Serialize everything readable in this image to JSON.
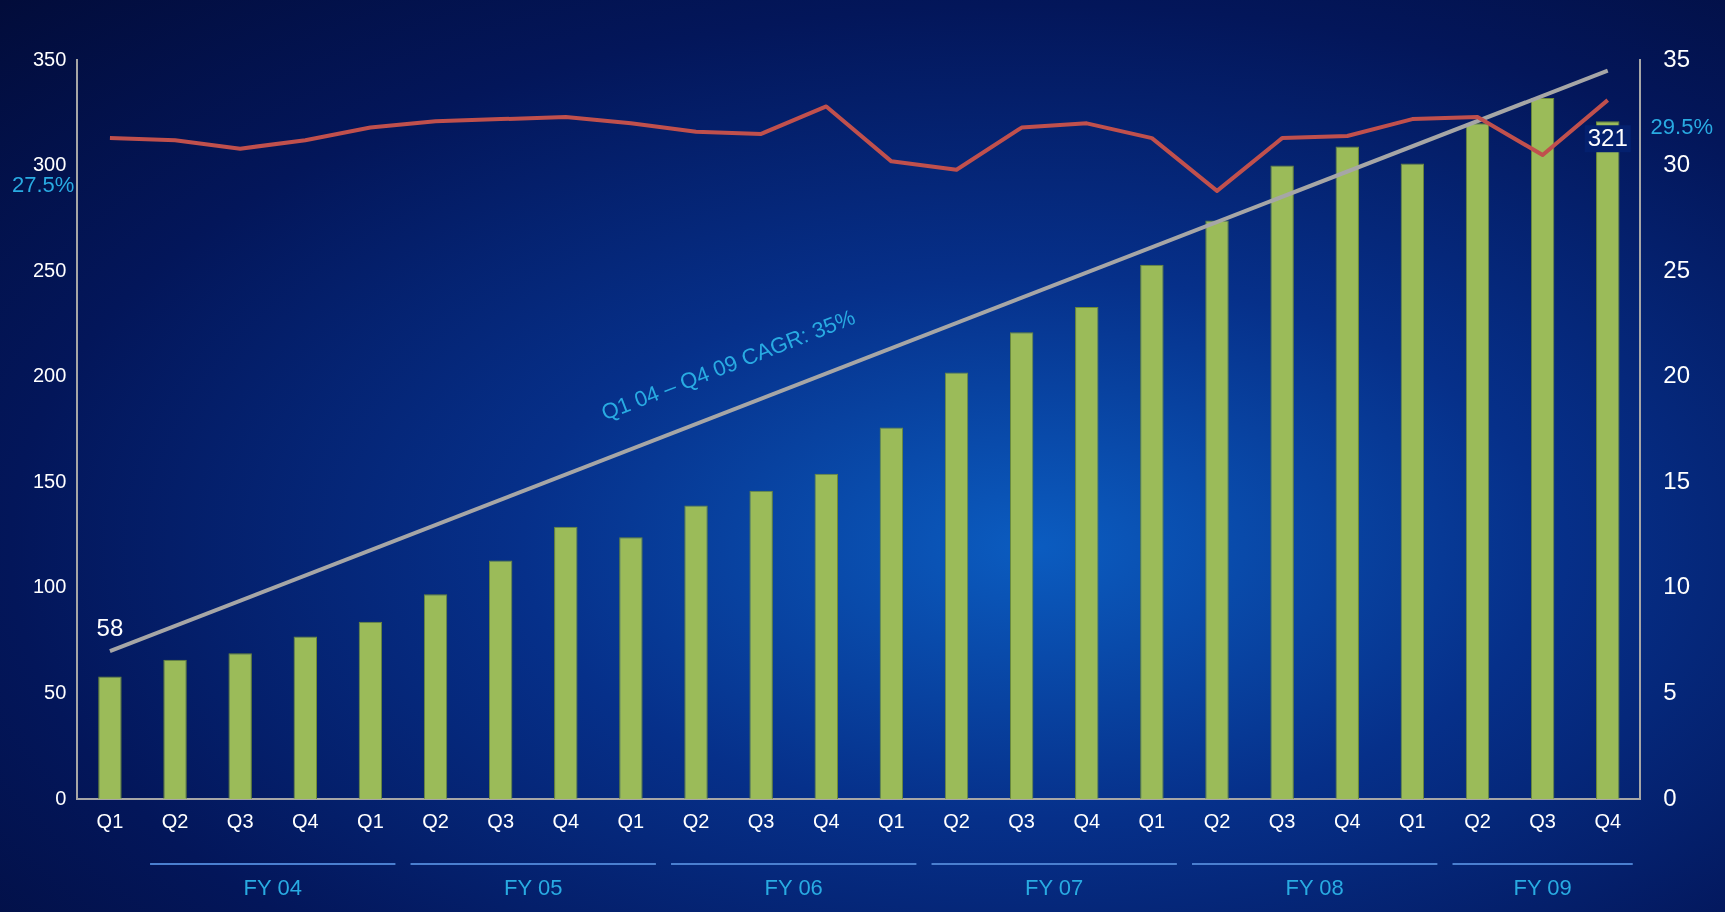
{
  "chart_data": {
    "type": "bar",
    "categories": [
      "Q1",
      "Q2",
      "Q3",
      "Q4",
      "Q1",
      "Q2",
      "Q3",
      "Q4",
      "Q1",
      "Q2",
      "Q3",
      "Q4",
      "Q1",
      "Q2",
      "Q3",
      "Q4",
      "Q1",
      "Q2",
      "Q3",
      "Q4",
      "Q1",
      "Q2",
      "Q3",
      "Q4"
    ],
    "series": [
      {
        "color": "#9bbb59",
        "values": [
          58,
          66,
          69,
          77,
          84,
          97,
          113,
          129,
          124,
          139,
          146,
          154,
          176,
          202,
          221,
          233,
          253,
          274,
          300,
          309,
          301,
          320,
          332,
          321
        ],
        "value_labels": [
          "58",
          null,
          null,
          null,
          null,
          null,
          null,
          null,
          null,
          null,
          null,
          null,
          null,
          null,
          null,
          null,
          null,
          null,
          null,
          null,
          null,
          null,
          null,
          "321"
        ]
      },
      {
        "type": "line",
        "axis": "y2",
        "color": "#c0504d",
        "values": [
          31.3,
          31.2,
          30.8,
          31.2,
          31.8,
          32.1,
          32.2,
          32.3,
          32.0,
          31.6,
          31.5,
          32.8,
          30.2,
          29.8,
          31.8,
          32.0,
          31.3,
          28.8,
          31.3,
          31.4,
          32.2,
          32.3,
          30.5,
          33.1
        ]
      },
      {
        "type": "line",
        "color": "#a6a6a6",
        "values": [
          70,
          null,
          null,
          null,
          null,
          null,
          null,
          null,
          null,
          null,
          null,
          null,
          null,
          null,
          null,
          null,
          null,
          null,
          null,
          null,
          null,
          null,
          null,
          345
        ]
      }
    ],
    "ylim": [
      0,
      350
    ],
    "yticks": [
      0,
      50,
      100,
      150,
      200,
      250,
      300,
      350
    ],
    "y2lim": [
      0,
      35
    ],
    "y2ticks": [
      0,
      5,
      10,
      15,
      20,
      25,
      30,
      35
    ],
    "annotations": [
      "27.5%",
      "29.5%",
      "Q1 04 – Q4 09 CAGR: 35%",
      "FY 04",
      "FY 05",
      "FY 06",
      "FY 07",
      "FY 08",
      "FY 09"
    ],
    "grid": false,
    "legend": false,
    "marker": "none"
  }
}
